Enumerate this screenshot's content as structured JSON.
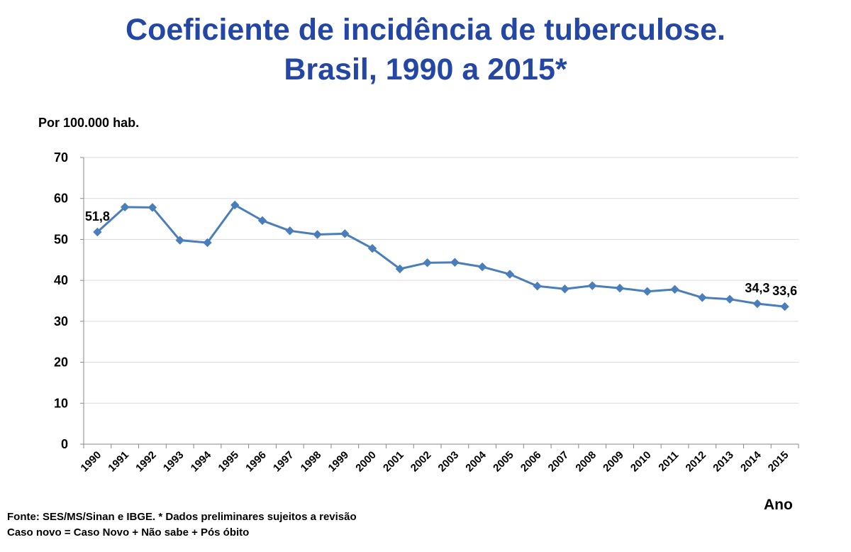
{
  "title_line1": "Coeficiente de incidência de tuberculose.",
  "title_line2": "Brasil, 1990 a 2015*",
  "footnote_line1": "Fonte: SES/MS/Sinan e IBGE. * Dados preliminares sujeitos a revisão",
  "footnote_line2": "Caso novo = Caso Novo + Não sabe + Pós óbito",
  "colors": {
    "title": "#2447a6",
    "series": "#4a7ebb",
    "grid": "#d9d9d9"
  },
  "chart_data": {
    "type": "line",
    "title": "Coeficiente de incidência de tuberculose. Brasil, 1990 a 2015*",
    "xlabel": "Ano",
    "ylabel": "Por 100.000 hab.",
    "ylim": [
      0,
      70
    ],
    "yticks": [
      "0",
      "10",
      "20",
      "30",
      "40",
      "50",
      "60",
      "70"
    ],
    "grid": true,
    "legend": "none",
    "categories": [
      "1990",
      "1991",
      "1992",
      "1993",
      "1994",
      "1995",
      "1996",
      "1997",
      "1998",
      "1999",
      "2000",
      "2001",
      "2002",
      "2003",
      "2004",
      "2005",
      "2006",
      "2007",
      "2008",
      "2009",
      "2010",
      "2011",
      "2012",
      "2013",
      "2014",
      "2015"
    ],
    "series": [
      {
        "name": "Coeficiente de incidência",
        "values": [
          51.8,
          57.9,
          57.8,
          49.8,
          49.2,
          58.4,
          54.6,
          52.1,
          51.2,
          51.4,
          47.8,
          42.8,
          44.3,
          44.4,
          43.3,
          41.5,
          38.6,
          37.9,
          38.7,
          38.1,
          37.3,
          37.8,
          35.8,
          35.4,
          34.3,
          33.6
        ]
      }
    ],
    "data_labels": [
      {
        "index": 0,
        "text": "51,8"
      },
      {
        "index": 24,
        "text": "34,3"
      },
      {
        "index": 25,
        "text": "33,6"
      }
    ]
  }
}
